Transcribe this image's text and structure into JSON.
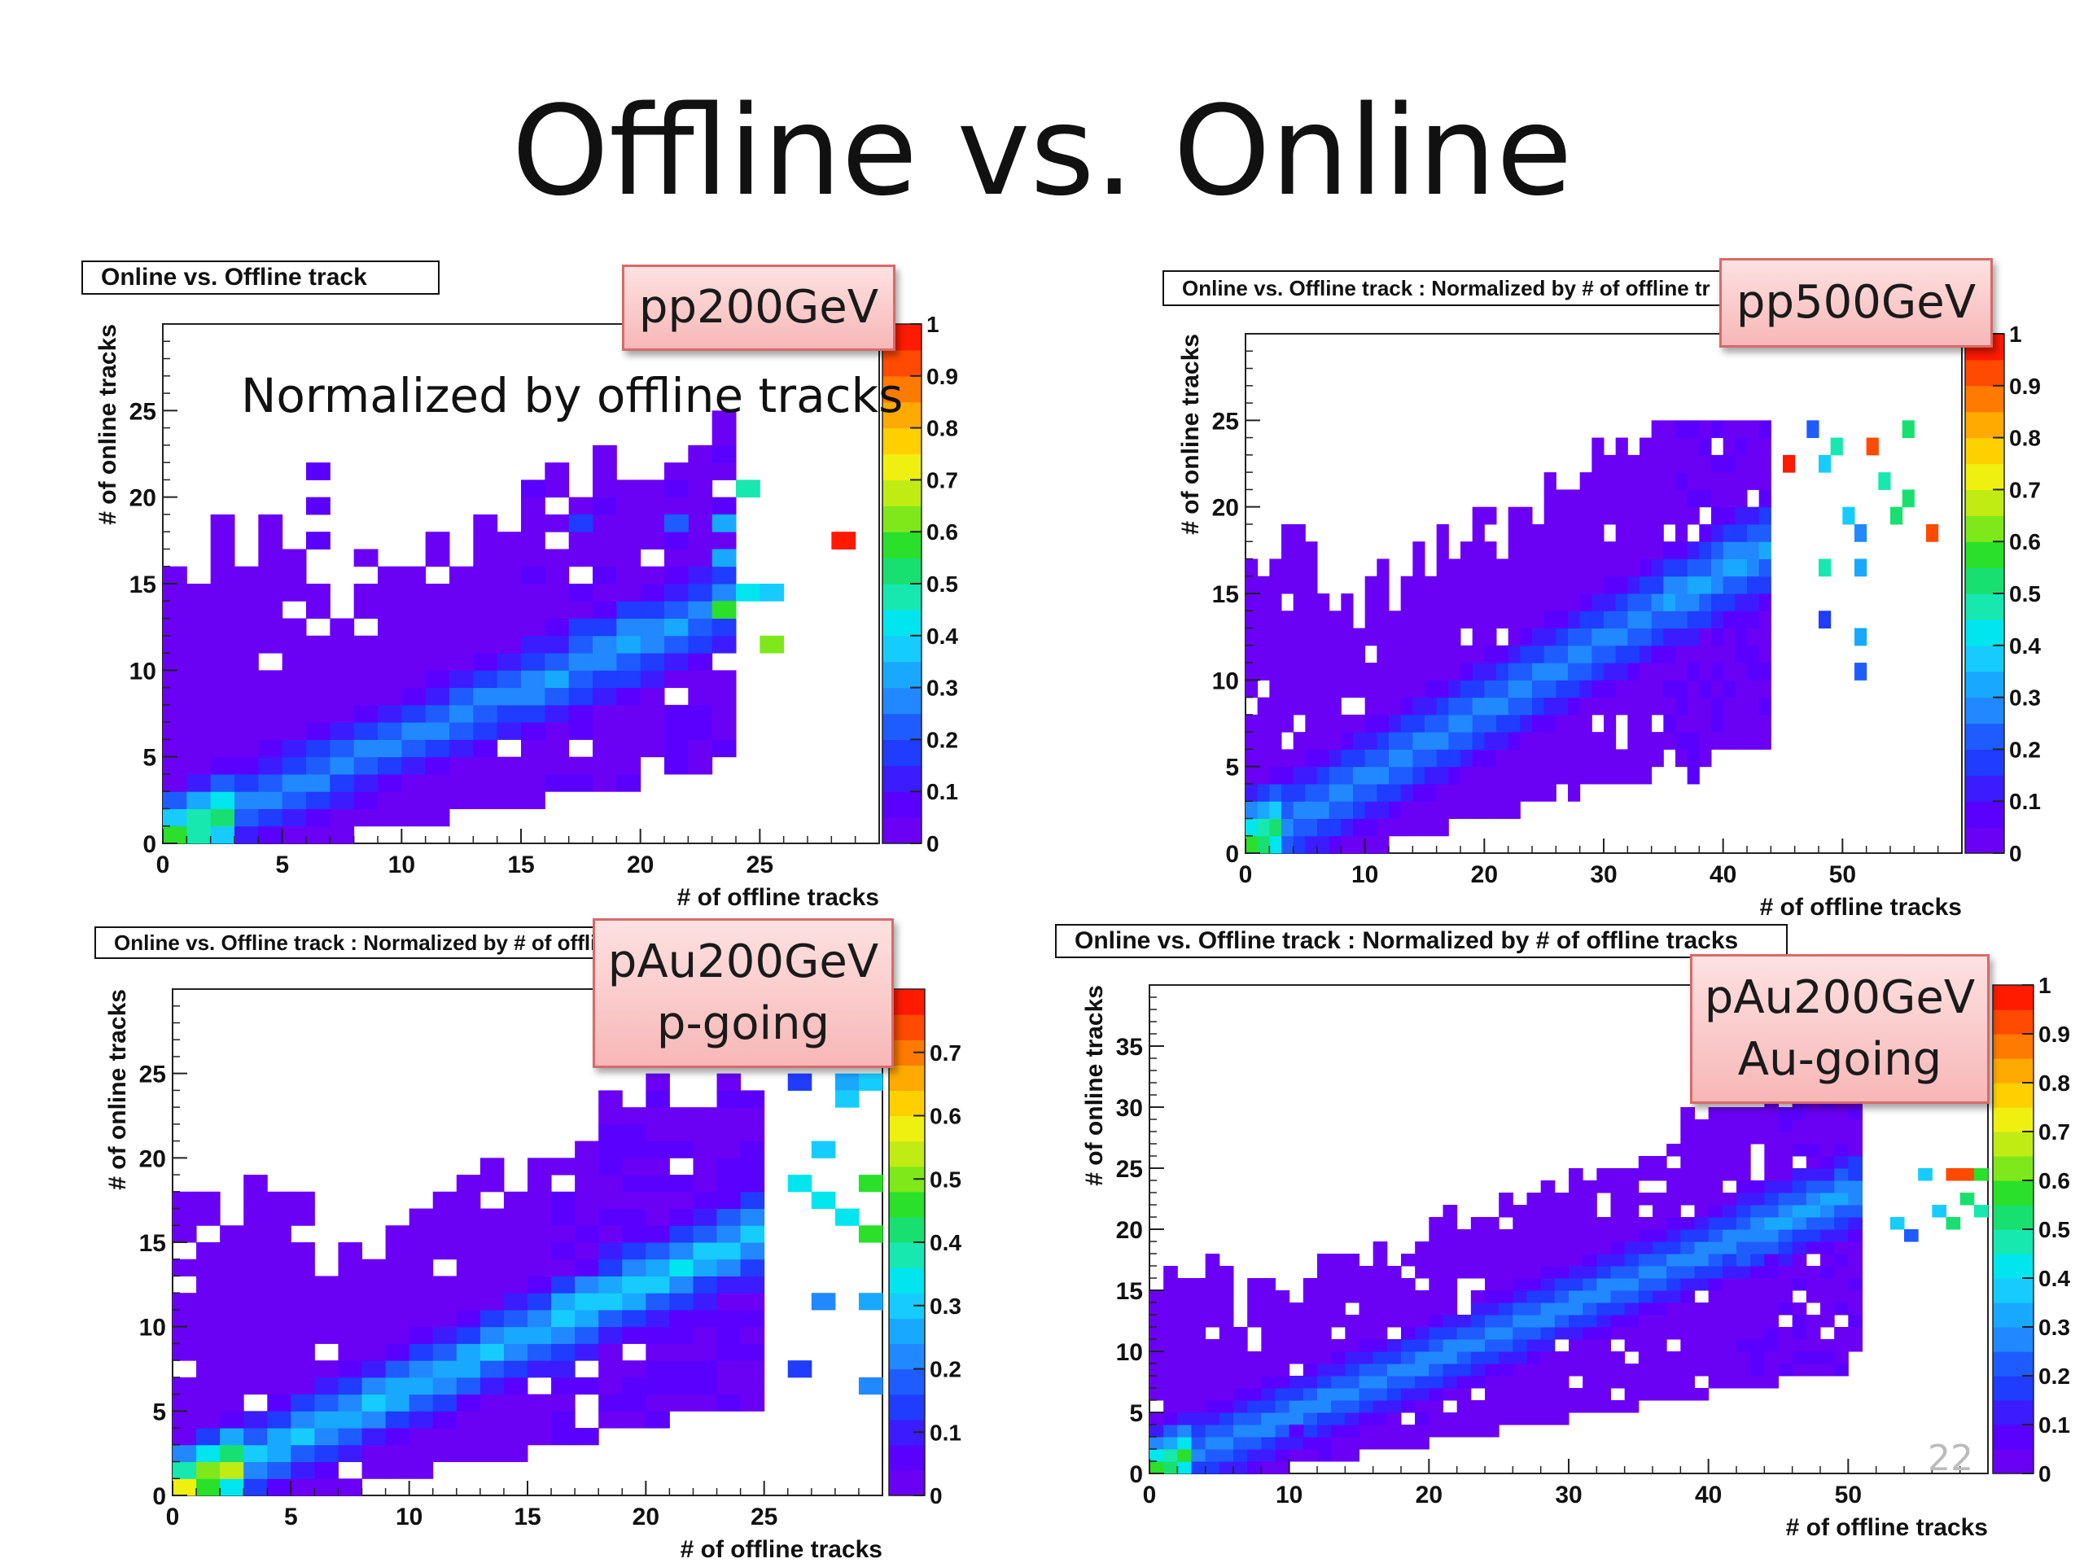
{
  "slide": {
    "title": "Offline vs. Online",
    "page_number": "22",
    "note": "Normalized by offline tracks"
  },
  "palette": [
    "#6a00f4",
    "#5a00ff",
    "#3c1cff",
    "#1f3cff",
    "#1f5cff",
    "#2288ff",
    "#19a8ff",
    "#16ccff",
    "#00e5ee",
    "#16e8b0",
    "#18e070",
    "#2ae02a",
    "#7ee81a",
    "#c0ec14",
    "#f0f010",
    "#ffd000",
    "#ffaa00",
    "#ff7a00",
    "#ff4a00",
    "#ff1a00"
  ],
  "chart_data": [
    {
      "type": "heatmap",
      "tag": "pp200GeV",
      "histogram_title": "Online vs. Offline track",
      "xlabel": "# of offline tracks",
      "ylabel": "# of online tracks",
      "xlim": [
        0,
        30
      ],
      "ylim": [
        0,
        30
      ],
      "xticks": [
        0,
        5,
        10,
        15,
        20,
        25
      ],
      "yticks": [
        0,
        5,
        10,
        15,
        20,
        25
      ],
      "zlim": [
        0,
        1
      ],
      "zticks": [
        0,
        0.1,
        0.2,
        0.3,
        0.4,
        0.5,
        0.6,
        0.7,
        0.8,
        0.9,
        1
      ],
      "ridge_slope": 0.58,
      "ridge_width": 1.2,
      "max_offline": 23,
      "outliers": [
        [
          6,
          21,
          0.05
        ],
        [
          6,
          19,
          0.05
        ],
        [
          6,
          17,
          0.05
        ],
        [
          24,
          20,
          0.45
        ],
        [
          28,
          17,
          0.95
        ],
        [
          17,
          18,
          0.15
        ],
        [
          21,
          18,
          0.2
        ],
        [
          23,
          18,
          0.3
        ],
        [
          23,
          16,
          0.3
        ],
        [
          24,
          14,
          0.4
        ],
        [
          25,
          14,
          0.35
        ],
        [
          23,
          13,
          0.55
        ],
        [
          25,
          11,
          0.6
        ]
      ]
    },
    {
      "type": "heatmap",
      "tag": "pp500GeV",
      "histogram_title": "Online vs. Offline track : Normalized by # of offline tr",
      "xlabel": "# of offline tracks",
      "ylabel": "# of online tracks",
      "xlim": [
        0,
        60
      ],
      "ylim": [
        0,
        30
      ],
      "xticks": [
        0,
        10,
        20,
        30,
        40,
        50
      ],
      "yticks": [
        0,
        5,
        10,
        15,
        20,
        25
      ],
      "zlim": [
        0,
        1
      ],
      "zticks": [
        0,
        0.1,
        0.2,
        0.3,
        0.4,
        0.5,
        0.6,
        0.7,
        0.8,
        0.9,
        1
      ],
      "ridge_slope": 0.4,
      "ridge_width": 1.4,
      "max_offline": 43,
      "outliers": [
        [
          47,
          24,
          0.2
        ],
        [
          49,
          23,
          0.45
        ],
        [
          52,
          23,
          0.9
        ],
        [
          55,
          24,
          0.5
        ],
        [
          45,
          22,
          0.95
        ],
        [
          48,
          22,
          0.35
        ],
        [
          53,
          21,
          0.45
        ],
        [
          55,
          20,
          0.5
        ],
        [
          50,
          19,
          0.35
        ],
        [
          54,
          19,
          0.5
        ],
        [
          57,
          18,
          0.9
        ],
        [
          51,
          18,
          0.25
        ],
        [
          48,
          16,
          0.45
        ],
        [
          51,
          16,
          0.3
        ],
        [
          37,
          4,
          0.05
        ],
        [
          51,
          10,
          0.2
        ],
        [
          48,
          13,
          0.15
        ],
        [
          51,
          12,
          0.3
        ]
      ]
    },
    {
      "type": "heatmap",
      "tag": "pAu200GeV\np-going",
      "histogram_title": "Online vs. Offline track : Normalized by # of offli",
      "xlabel": "# of offline tracks",
      "ylabel": "# of online tracks",
      "xlim": [
        0,
        30
      ],
      "ylim": [
        0,
        30
      ],
      "xticks": [
        0,
        5,
        10,
        15,
        20,
        25
      ],
      "yticks": [
        0,
        5,
        10,
        15,
        20,
        25
      ],
      "zlim": [
        0,
        0.8
      ],
      "zticks": [
        0,
        0.1,
        0.2,
        0.3,
        0.4,
        0.5,
        0.6,
        0.7
      ],
      "ridge_slope": 0.62,
      "ridge_width": 1.2,
      "max_offline": 24,
      "outliers": [
        [
          26,
          24,
          0.15
        ],
        [
          28,
          24,
          0.25
        ],
        [
          28,
          23,
          0.3
        ],
        [
          29,
          24,
          0.3
        ],
        [
          27,
          20,
          0.3
        ],
        [
          29,
          18,
          0.45
        ],
        [
          28,
          16,
          0.35
        ],
        [
          29,
          15,
          0.45
        ],
        [
          27,
          11,
          0.2
        ],
        [
          29,
          11,
          0.25
        ],
        [
          26,
          7,
          0.12
        ],
        [
          29,
          6,
          0.2
        ],
        [
          19,
          5,
          0.05
        ],
        [
          26,
          18,
          0.35
        ],
        [
          27,
          17,
          0.35
        ]
      ]
    },
    {
      "type": "heatmap",
      "tag": "pAu200GeV\nAu-going",
      "histogram_title": "Online vs. Offline track : Normalized by # of offline tracks",
      "xlabel": "# of offline tracks",
      "ylabel": "# of online tracks",
      "xlim": [
        0,
        60
      ],
      "ylim": [
        0,
        40
      ],
      "xticks": [
        0,
        10,
        20,
        30,
        40,
        50
      ],
      "yticks": [
        0,
        5,
        10,
        15,
        20,
        25,
        30,
        35
      ],
      "zlim": [
        0,
        1
      ],
      "zticks": [
        0,
        0.1,
        0.2,
        0.3,
        0.4,
        0.5,
        0.6,
        0.7,
        0.8,
        0.9,
        1
      ],
      "ridge_slope": 0.45,
      "ridge_width": 1.5,
      "max_offline": 50,
      "outliers": [
        [
          55,
          24,
          0.35
        ],
        [
          57,
          24,
          0.9
        ],
        [
          58,
          24,
          0.9
        ],
        [
          59,
          24,
          0.55
        ],
        [
          58,
          22,
          0.5
        ],
        [
          56,
          21,
          0.35
        ],
        [
          53,
          20,
          0.35
        ],
        [
          54,
          19,
          0.2
        ],
        [
          57,
          20,
          0.5
        ],
        [
          59,
          21,
          0.45
        ],
        [
          12,
          1,
          0.05
        ],
        [
          10,
          3,
          0.05
        ],
        [
          19,
          4,
          0.05
        ],
        [
          46,
          15,
          0.05
        ]
      ]
    }
  ]
}
